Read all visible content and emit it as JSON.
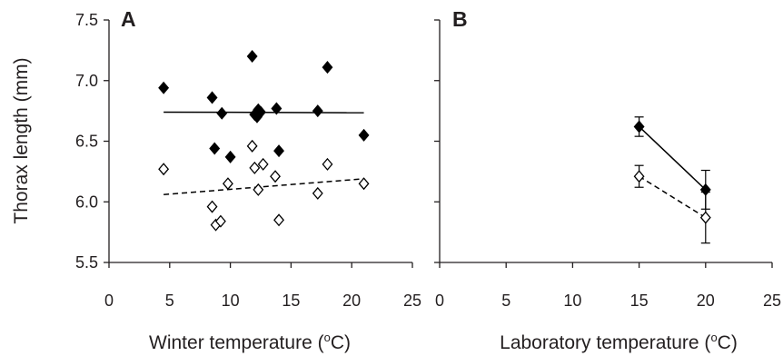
{
  "chart_data": [
    {
      "type": "scatter",
      "panel_label": "A",
      "xlabel": "Winter temperature (",
      "xlabel_sup": "o",
      "xlabel_end": "C)",
      "ylabel": "Thorax length (mm)",
      "xlim": [
        0,
        25
      ],
      "ylim": [
        5.5,
        7.5
      ],
      "xticks": [
        "0",
        "5",
        "10",
        "15",
        "20",
        "25"
      ],
      "yticks": [
        "5.5",
        "6.0",
        "6.5",
        "7.0",
        "7.5"
      ],
      "grid": false,
      "series": [
        {
          "marker": "filled-diamond",
          "color": "#000000",
          "points": [
            [
              4.5,
              6.94
            ],
            [
              8.5,
              6.86
            ],
            [
              8.7,
              6.44
            ],
            [
              9.3,
              6.73
            ],
            [
              10.0,
              6.37
            ],
            [
              11.8,
              7.2
            ],
            [
              12.0,
              6.72
            ],
            [
              12.2,
              6.7
            ],
            [
              12.5,
              6.74
            ],
            [
              12.3,
              6.76
            ],
            [
              13.8,
              6.77
            ],
            [
              14.0,
              6.42
            ],
            [
              17.2,
              6.75
            ],
            [
              18.0,
              7.11
            ],
            [
              21.0,
              6.55
            ]
          ],
          "trend": {
            "style": "solid",
            "x": [
              4.5,
              21.0
            ],
            "y": [
              6.74,
              6.735
            ]
          }
        },
        {
          "marker": "open-diamond",
          "color": "#000000",
          "points": [
            [
              4.5,
              6.27
            ],
            [
              8.5,
              5.96
            ],
            [
              8.8,
              5.81
            ],
            [
              9.2,
              5.84
            ],
            [
              9.8,
              6.15
            ],
            [
              11.8,
              6.46
            ],
            [
              12.0,
              6.28
            ],
            [
              12.3,
              6.1
            ],
            [
              12.7,
              6.31
            ],
            [
              13.7,
              6.21
            ],
            [
              14.0,
              5.85
            ],
            [
              17.2,
              6.07
            ],
            [
              18.0,
              6.31
            ],
            [
              21.0,
              6.15
            ]
          ],
          "trend": {
            "style": "dashed",
            "x": [
              4.5,
              21.0
            ],
            "y": [
              6.06,
              6.19
            ]
          }
        }
      ]
    },
    {
      "type": "line",
      "panel_label": "B",
      "xlabel": "Laboratory temperature (",
      "xlabel_sup": "o",
      "xlabel_end": "C)",
      "xlim": [
        0,
        25
      ],
      "ylim": [
        5.5,
        7.5
      ],
      "xticks": [
        "0",
        "5",
        "10",
        "15",
        "20",
        "25"
      ],
      "grid": false,
      "series": [
        {
          "marker": "filled-diamond",
          "line_style": "solid",
          "x": [
            15,
            20
          ],
          "y": [
            6.62,
            6.1
          ],
          "error": [
            0.08,
            0.16
          ]
        },
        {
          "marker": "open-diamond",
          "line_style": "dashed",
          "x": [
            15,
            20
          ],
          "y": [
            6.21,
            5.87
          ],
          "error": [
            0.09,
            0.21
          ]
        }
      ]
    }
  ]
}
